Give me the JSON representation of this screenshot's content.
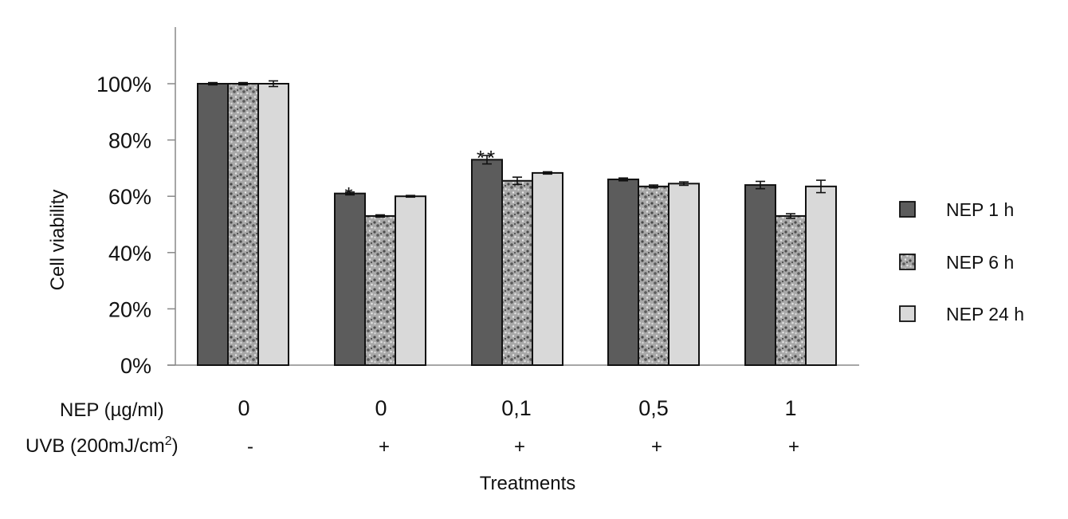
{
  "colors": {
    "series_1": "#5c5c5c",
    "series_2_pattern": "stipple-grey",
    "series_3": "#d9d9d9",
    "outline": "#111111",
    "axis": "#888888"
  },
  "chart_data": {
    "type": "bar",
    "ylabel": "Cell viability",
    "xlabel": "Treatments",
    "ylim": [
      0,
      100
    ],
    "y_ticks": [
      0,
      20,
      40,
      60,
      80,
      100
    ],
    "y_tick_labels": [
      "0%",
      "20%",
      "40%",
      "60%",
      "80%",
      "100%"
    ],
    "categories": [
      "0",
      "0",
      "0,1",
      "0,5",
      "1"
    ],
    "row_labels": {
      "nep": "NEP (µg/ml)",
      "uvb_prefix": "UVB (200mJ/cm",
      "uvb_sup": "2",
      "uvb_suffix": ")"
    },
    "uvb_values": [
      "-",
      "+",
      "+",
      "+",
      "+"
    ],
    "series": [
      {
        "name": "NEP 1 h",
        "values": [
          100,
          61,
          73,
          66,
          64
        ],
        "errors": [
          0.4,
          0.5,
          1.5,
          0.5,
          1.3
        ]
      },
      {
        "name": "NEP 6 h",
        "values": [
          100,
          53,
          65.5,
          63.5,
          53
        ],
        "errors": [
          0.4,
          0.4,
          1.3,
          0.5,
          0.8
        ]
      },
      {
        "name": "NEP 24 h",
        "values": [
          100,
          60,
          68.3,
          64.5,
          63.5
        ],
        "errors": [
          1.0,
          0.3,
          0.4,
          0.6,
          2.2
        ]
      }
    ],
    "annotations": [
      {
        "category_index": 1,
        "series_index": 0,
        "text": "*"
      },
      {
        "category_index": 2,
        "series_index": 0,
        "text": "**"
      }
    ],
    "legend_position": "right",
    "grid": false
  }
}
